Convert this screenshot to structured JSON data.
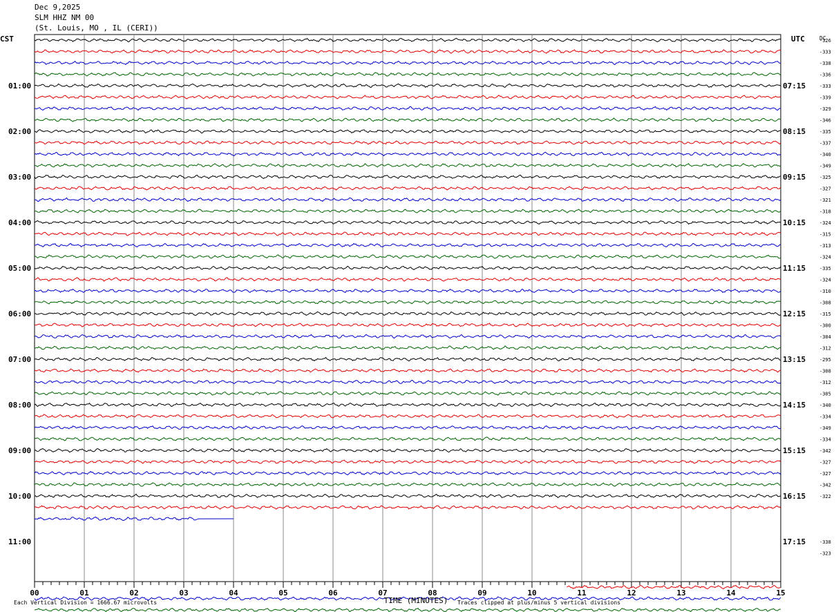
{
  "header": {
    "date": "Dec 9,2025",
    "station": "SLM HHZ NM 00",
    "location": "(St. Louis, MO , IL (CERI))"
  },
  "chart_data": {
    "type": "line",
    "title": "",
    "xlabel": "TIME (MINUTES)",
    "ylabel": "",
    "left_axis_label": "CST",
    "right_axis_label": "UTC",
    "dc_label": "DC",
    "xlim": [
      0,
      15
    ],
    "x_ticks": [
      "00",
      "01",
      "02",
      "03",
      "04",
      "05",
      "06",
      "07",
      "08",
      "09",
      "10",
      "11",
      "12",
      "13",
      "14",
      "15"
    ],
    "cst_hour_labels": [
      "01:00",
      "02:00",
      "03:00",
      "04:00",
      "05:00",
      "06:00",
      "07:00",
      "08:00",
      "09:00",
      "10:00",
      "11:00"
    ],
    "utc_hour_labels": [
      "07:15",
      "08:15",
      "09:15",
      "10:15",
      "11:15",
      "12:15",
      "13:15",
      "14:15",
      "15:15",
      "16:15",
      "17:15"
    ],
    "trace_colors": [
      "#000000",
      "#e00000",
      "#0000c8",
      "#006400"
    ],
    "dc_offsets": [
      "-326",
      "-333",
      "-338",
      "-336",
      "-333",
      "-339",
      "-329",
      "-346",
      "-335",
      "-337",
      "-340",
      "-349",
      "-325",
      "-327",
      "-321",
      "-318",
      "-324",
      "-315",
      "-313",
      "-324",
      "-335",
      "-324",
      "-310",
      "-308",
      "-315",
      "-300",
      "-304",
      "-312",
      "-295",
      "-308",
      "-312",
      "-305",
      "-340",
      "-334",
      "-349",
      "-334",
      "-342",
      "-327",
      "-327",
      "-342",
      "-322",
      "",
      "",
      "",
      "-338",
      "-323"
    ],
    "traces": [
      {
        "color": 0,
        "start": 0,
        "end": 15
      },
      {
        "color": 1,
        "start": 0,
        "end": 15
      },
      {
        "color": 2,
        "start": 0,
        "end": 15
      },
      {
        "color": 3,
        "start": 0,
        "end": 15
      },
      {
        "color": 0,
        "start": 0,
        "end": 15
      },
      {
        "color": 1,
        "start": 0,
        "end": 15
      },
      {
        "color": 2,
        "start": 0,
        "end": 15
      },
      {
        "color": 3,
        "start": 0,
        "end": 15
      },
      {
        "color": 0,
        "start": 0,
        "end": 15
      },
      {
        "color": 1,
        "start": 0,
        "end": 15
      },
      {
        "color": 2,
        "start": 0,
        "end": 15
      },
      {
        "color": 3,
        "start": 0,
        "end": 15
      },
      {
        "color": 0,
        "start": 0,
        "end": 15
      },
      {
        "color": 1,
        "start": 0,
        "end": 15
      },
      {
        "color": 2,
        "start": 0,
        "end": 15
      },
      {
        "color": 3,
        "start": 0,
        "end": 15
      },
      {
        "color": 0,
        "start": 0,
        "end": 15
      },
      {
        "color": 1,
        "start": 0,
        "end": 15
      },
      {
        "color": 2,
        "start": 0,
        "end": 15
      },
      {
        "color": 3,
        "start": 0,
        "end": 15
      },
      {
        "color": 0,
        "start": 0,
        "end": 15
      },
      {
        "color": 1,
        "start": 0,
        "end": 15
      },
      {
        "color": 2,
        "start": 0,
        "end": 15
      },
      {
        "color": 3,
        "start": 0,
        "end": 15
      },
      {
        "color": 0,
        "start": 0,
        "end": 15
      },
      {
        "color": 1,
        "start": 0,
        "end": 15
      },
      {
        "color": 2,
        "start": 0,
        "end": 15
      },
      {
        "color": 3,
        "start": 0,
        "end": 15
      },
      {
        "color": 0,
        "start": 0,
        "end": 15
      },
      {
        "color": 1,
        "start": 0,
        "end": 15
      },
      {
        "color": 2,
        "start": 0,
        "end": 15
      },
      {
        "color": 3,
        "start": 0,
        "end": 15
      },
      {
        "color": 0,
        "start": 0,
        "end": 15
      },
      {
        "color": 1,
        "start": 0,
        "end": 15
      },
      {
        "color": 2,
        "start": 0,
        "end": 15
      },
      {
        "color": 3,
        "start": 0,
        "end": 15
      },
      {
        "color": 0,
        "start": 0,
        "end": 15
      },
      {
        "color": 1,
        "start": 0,
        "end": 15
      },
      {
        "color": 2,
        "start": 0,
        "end": 15
      },
      {
        "color": 3,
        "start": 0,
        "end": 15
      },
      {
        "color": 0,
        "start": 0,
        "end": 15
      },
      {
        "color": 1,
        "start": 0,
        "end": 15
      },
      {
        "color": 2,
        "start": 0,
        "end": 4,
        "flat_from": 3.3
      },
      {
        "color": 3,
        "start": 0,
        "end": 0
      },
      {
        "color": 0,
        "start": 0,
        "end": 0
      },
      {
        "color": 1,
        "start": 0,
        "end": 0
      },
      {
        "color": 2,
        "start": 0,
        "end": 0
      },
      {
        "color": 3,
        "start": 0,
        "end": 0
      },
      {
        "color": 1,
        "start": 10.7,
        "end": 15
      },
      {
        "color": 2,
        "start": 0,
        "end": 15
      },
      {
        "color": 3,
        "start": 0,
        "end": 15
      }
    ],
    "footnote_left": "Each Vertical Division = 1666.67 microvolts",
    "footnote_right": "Traces clipped at plus/minus 5 vertical divisions"
  }
}
